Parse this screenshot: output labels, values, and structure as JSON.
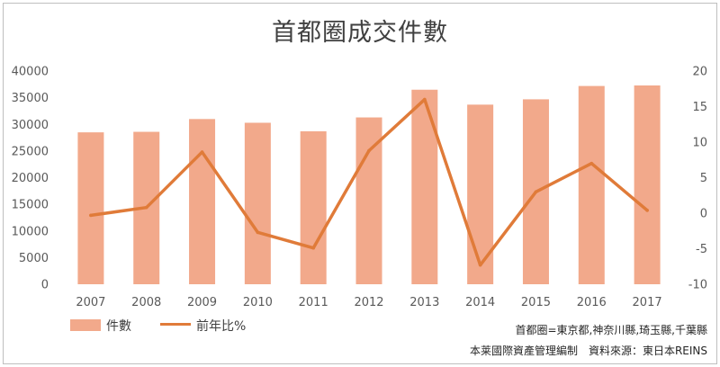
{
  "chart_data": {
    "type": "bar+line",
    "title": "首都圈成交件數",
    "categories": [
      "2007",
      "2008",
      "2009",
      "2010",
      "2011",
      "2012",
      "2013",
      "2014",
      "2015",
      "2016",
      "2017"
    ],
    "series": [
      {
        "name": "件數",
        "type": "bar",
        "axis": "left",
        "color": "#f2a98b",
        "values": [
          28500,
          28600,
          31000,
          30300,
          28700,
          31300,
          36500,
          33700,
          34700,
          37200,
          37300
        ]
      },
      {
        "name": "前年比%",
        "type": "line",
        "axis": "right",
        "color": "#e07b39",
        "values": [
          -0.3,
          0.8,
          8.6,
          -2.7,
          -4.9,
          8.8,
          16.0,
          -7.3,
          3.0,
          7.0,
          0.4
        ]
      }
    ],
    "y_left": {
      "min": 0,
      "max": 40000,
      "ticks": [
        "0",
        "5000",
        "10000",
        "15000",
        "20000",
        "25000",
        "30000",
        "35000",
        "40000"
      ]
    },
    "y_right": {
      "min": -10,
      "max": 20,
      "ticks": [
        "-10",
        "-5",
        "0",
        "5",
        "10",
        "15",
        "20"
      ]
    },
    "grid": false,
    "legend_position": "bottom-left"
  },
  "legend": {
    "bar_label": "件數",
    "line_label": "前年比%"
  },
  "notes": {
    "line1": "首都圈=東京都,神奈川縣,琦玉縣,千葉縣",
    "line2": "本莱國際資產管理編制　資料來源：東日本REINS"
  }
}
